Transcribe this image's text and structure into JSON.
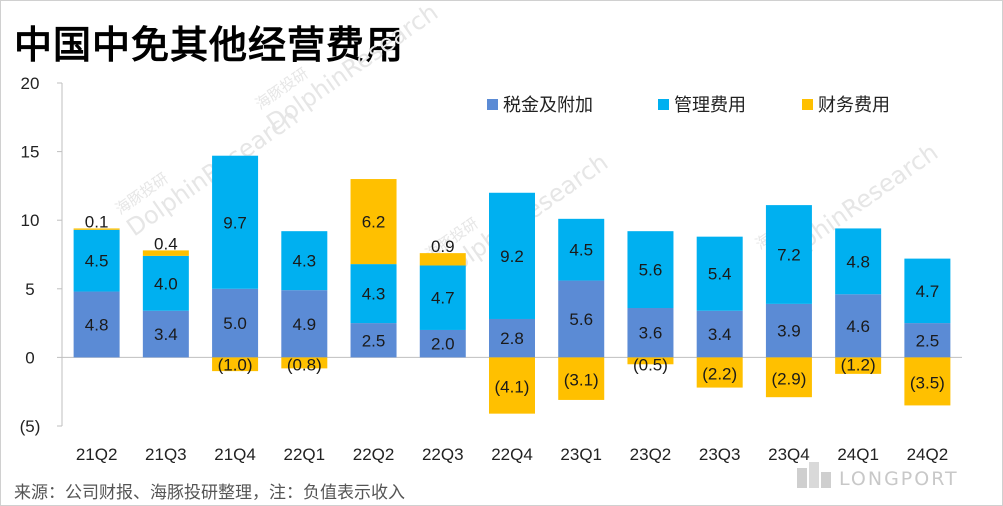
{
  "title": "中国中免其他经营费用",
  "source": "来源：公司财报、海豚投研整理，注：负值表示收入",
  "watermark": {
    "cn": "海豚投研",
    "en": "DolphinResearch"
  },
  "logo_text": "LONGPORT",
  "colors": {
    "tax": "#5B8BD5",
    "mgmt": "#00B0F0",
    "fin": "#FFC000",
    "axis": "#bfbfbf",
    "grid": "#d9d9d9",
    "label": "#1a1a1a"
  },
  "chart_data": {
    "type": "bar",
    "stacked": true,
    "title": "中国中免其他经营费用",
    "categories": [
      "21Q2",
      "21Q3",
      "21Q4",
      "22Q1",
      "22Q2",
      "22Q3",
      "22Q4",
      "23Q1",
      "23Q2",
      "23Q3",
      "23Q4",
      "24Q1",
      "24Q2"
    ],
    "series": [
      {
        "name": "税金及附加",
        "key": "tax",
        "values": [
          4.8,
          3.4,
          5.0,
          4.9,
          2.5,
          2.0,
          2.8,
          5.6,
          3.6,
          3.4,
          3.9,
          4.6,
          2.5
        ],
        "labels": [
          "4.8",
          "3.4",
          "5.0",
          "4.9",
          "2.5",
          "2.0",
          "2.8",
          "5.6",
          "3.6",
          "3.4",
          "3.9",
          "4.6",
          "2.5"
        ]
      },
      {
        "name": "管理费用",
        "key": "mgmt",
        "values": [
          4.5,
          4.0,
          9.7,
          4.3,
          4.3,
          4.7,
          9.2,
          4.5,
          5.6,
          5.4,
          7.2,
          4.8,
          4.7
        ],
        "labels": [
          "4.5",
          "4.0",
          "9.7",
          "4.3",
          "4.3",
          "4.7",
          "9.2",
          "4.5",
          "5.6",
          "5.4",
          "7.2",
          "4.8",
          "4.7"
        ]
      },
      {
        "name": "财务费用",
        "key": "fin",
        "values": [
          0.1,
          0.4,
          -1.0,
          -0.8,
          6.2,
          0.9,
          -4.1,
          -3.1,
          -0.5,
          -2.2,
          -2.9,
          -1.2,
          -3.5
        ],
        "labels": [
          "0.1",
          "0.4",
          "(1.0)",
          "(0.8)",
          "6.2",
          "0.9",
          "(4.1)",
          "(3.1)",
          "(0.5)",
          "(2.2)",
          "(2.9)",
          "(1.2)",
          "(3.5)"
        ]
      }
    ],
    "ylim": [
      -5,
      20
    ],
    "yticks": [
      -5,
      0,
      5,
      10,
      15,
      20
    ],
    "ytick_labels": [
      "(5)",
      "0",
      "5",
      "10",
      "15",
      "20"
    ],
    "legend_position": "top-right",
    "xlabel": "",
    "ylabel": ""
  }
}
